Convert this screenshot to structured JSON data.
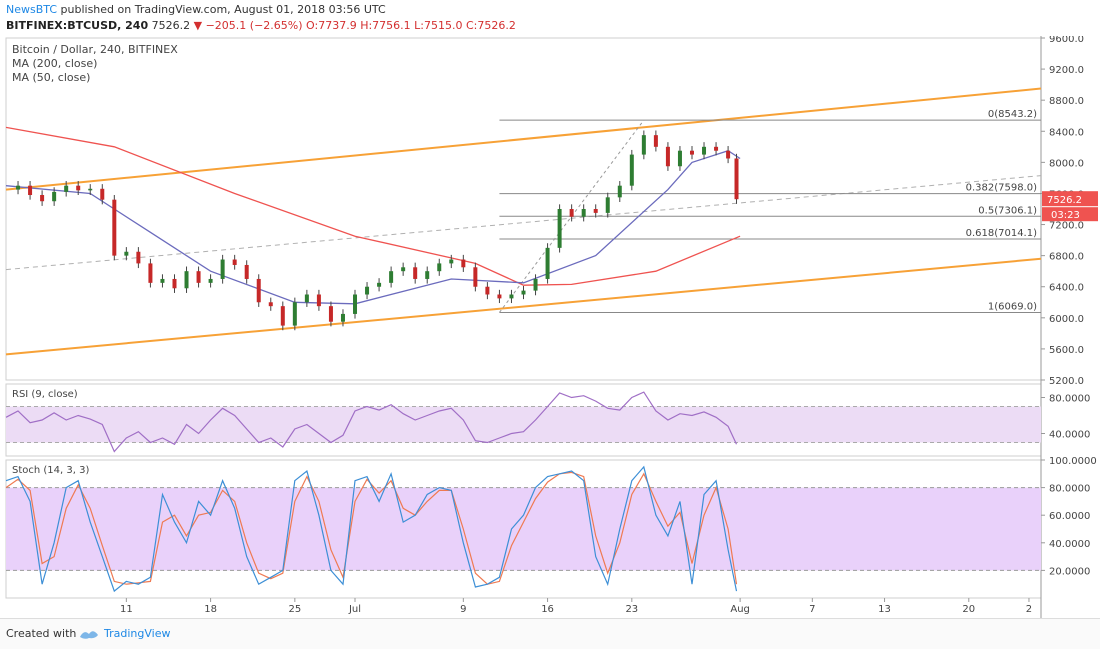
{
  "header": {
    "publisher": "NewsBTC",
    "published_text": "published on TradingView.com, August 01, 2018 03:56 UTC",
    "symbol": "BITFINEX:BTCUSD, 240",
    "last": "7526.2",
    "change": "−205.1 (−2.65%)",
    "ohlc": "O:7737.9 H:7756.1 L:7515.0 C:7526.2"
  },
  "footer": {
    "created_with": "Created with",
    "brand": "TradingView"
  },
  "colors": {
    "bull": "#26a69a",
    "bear": "#ef5350",
    "candle_body_up": "#2e7d32",
    "candle_body_down": "#c62828",
    "channel": "#f7a136",
    "ma200": "#ef5350",
    "ma50": "#6b6bbd",
    "rsi_line": "#a06fc6",
    "rsi_band": "#ecdcf5",
    "stoch_k": "#3d8fd6",
    "stoch_d": "#ef7a52",
    "stoch_band": "#e9d1fa",
    "fib": "#888888",
    "price_tag": "#ef5350"
  },
  "chart_data": [
    {
      "type": "candlestick",
      "title": "Bitcoin / Dollar, 240, BITFINEX",
      "indicators": [
        "MA (200, close)",
        "MA (50, close)"
      ],
      "ylim": [
        5200,
        9600
      ],
      "y_ticks": [
        "9600.0",
        "9200.0",
        "8800.0",
        "8400.0",
        "8000.0",
        "7600.0",
        "7200.0",
        "6800.0",
        "6400.0",
        "6000.0",
        "5600.0",
        "5200.0"
      ],
      "x_ticks": [
        "11",
        "18",
        "25",
        "Jul",
        "9",
        "16",
        "23",
        "Aug",
        "7",
        "13",
        "20",
        "2"
      ],
      "x_tick_days": [
        11,
        18,
        25,
        30,
        39,
        46,
        53,
        62,
        68,
        74,
        81,
        86
      ],
      "x_range_days": [
        1,
        87
      ],
      "last_day": 61.7,
      "close_series": [
        [
          1,
          7650
        ],
        [
          2,
          7700
        ],
        [
          3,
          7580
        ],
        [
          4,
          7500
        ],
        [
          5,
          7620
        ],
        [
          6,
          7700
        ],
        [
          7,
          7640
        ],
        [
          8,
          7660
        ],
        [
          9,
          7520
        ],
        [
          10,
          6800
        ],
        [
          11,
          6850
        ],
        [
          12,
          6700
        ],
        [
          13,
          6450
        ],
        [
          14,
          6500
        ],
        [
          15,
          6380
        ],
        [
          16,
          6600
        ],
        [
          17,
          6450
        ],
        [
          18,
          6500
        ],
        [
          19,
          6750
        ],
        [
          20,
          6680
        ],
        [
          21,
          6500
        ],
        [
          22,
          6200
        ],
        [
          23,
          6150
        ],
        [
          24,
          5900
        ],
        [
          25,
          6200
        ],
        [
          26,
          6300
        ],
        [
          27,
          6150
        ],
        [
          28,
          5950
        ],
        [
          29,
          6050
        ],
        [
          30,
          6300
        ],
        [
          31,
          6400
        ],
        [
          32,
          6450
        ],
        [
          33,
          6600
        ],
        [
          34,
          6650
        ],
        [
          35,
          6500
        ],
        [
          36,
          6600
        ],
        [
          37,
          6700
        ],
        [
          38,
          6750
        ],
        [
          39,
          6650
        ],
        [
          40,
          6400
        ],
        [
          41,
          6300
        ],
        [
          42,
          6250
        ],
        [
          43,
          6300
        ],
        [
          44,
          6350
        ],
        [
          45,
          6500
        ],
        [
          46,
          6900
        ],
        [
          47,
          7400
        ],
        [
          48,
          7300
        ],
        [
          49,
          7400
        ],
        [
          50,
          7350
        ],
        [
          51,
          7550
        ],
        [
          52,
          7700
        ],
        [
          53,
          8100
        ],
        [
          54,
          8350
        ],
        [
          55,
          8200
        ],
        [
          56,
          7950
        ],
        [
          57,
          8150
        ],
        [
          58,
          8100
        ],
        [
          59,
          8200
        ],
        [
          60,
          8150
        ],
        [
          61,
          8050
        ],
        [
          61.7,
          7526
        ]
      ],
      "ohlc_last": {
        "open": 7737.9,
        "high": 7756.1,
        "low": 7515.0,
        "close": 7526.2
      },
      "ma200": [
        [
          1,
          8450
        ],
        [
          10,
          8200
        ],
        [
          20,
          7600
        ],
        [
          30,
          7050
        ],
        [
          40,
          6700
        ],
        [
          44,
          6420
        ],
        [
          48,
          6430
        ],
        [
          55,
          6600
        ],
        [
          62,
          7050
        ]
      ],
      "ma50": [
        [
          1,
          7700
        ],
        [
          8,
          7600
        ],
        [
          13,
          7100
        ],
        [
          18,
          6600
        ],
        [
          25,
          6200
        ],
        [
          30,
          6180
        ],
        [
          38,
          6500
        ],
        [
          44,
          6450
        ],
        [
          50,
          6800
        ],
        [
          56,
          7650
        ],
        [
          58,
          8000
        ],
        [
          61,
          8150
        ],
        [
          62,
          8050
        ]
      ],
      "trendlines": [
        {
          "name": "upper channel",
          "points": [
            [
              1,
              7650
            ],
            [
              87,
              8950
            ]
          ]
        },
        {
          "name": "lower channel",
          "points": [
            [
              1,
              5530
            ],
            [
              87,
              6760
            ]
          ]
        },
        {
          "name": "midline",
          "points": [
            [
              1,
              6620
            ],
            [
              87,
              7830
            ]
          ]
        }
      ],
      "fibonacci": [
        {
          "label": "0(8543.2)",
          "value": 8543.2
        },
        {
          "label": "0.382(7598.0)",
          "value": 7598.0
        },
        {
          "label": "0.5(7306.1)",
          "value": 7306.1
        },
        {
          "label": "0.618(7014.1)",
          "value": 7014.1
        },
        {
          "label": "1(6069.0)",
          "value": 6069.0
        }
      ],
      "fib_x_range": [
        42,
        87
      ],
      "price_tag": "7526.2",
      "time_tag": "03:23"
    },
    {
      "type": "line",
      "title": "RSI (9, close)",
      "ylim": [
        15,
        95
      ],
      "y_ticks": [
        "80.0000",
        "40.0000"
      ],
      "band": [
        30,
        70
      ],
      "values": [
        [
          1,
          58
        ],
        [
          2,
          65
        ],
        [
          3,
          52
        ],
        [
          4,
          55
        ],
        [
          5,
          63
        ],
        [
          6,
          55
        ],
        [
          7,
          60
        ],
        [
          8,
          56
        ],
        [
          9,
          50
        ],
        [
          10,
          20
        ],
        [
          11,
          35
        ],
        [
          12,
          42
        ],
        [
          13,
          30
        ],
        [
          14,
          35
        ],
        [
          15,
          28
        ],
        [
          16,
          50
        ],
        [
          17,
          40
        ],
        [
          18,
          55
        ],
        [
          19,
          68
        ],
        [
          20,
          60
        ],
        [
          21,
          45
        ],
        [
          22,
          30
        ],
        [
          23,
          35
        ],
        [
          24,
          25
        ],
        [
          25,
          45
        ],
        [
          26,
          50
        ],
        [
          27,
          40
        ],
        [
          28,
          30
        ],
        [
          29,
          38
        ],
        [
          30,
          65
        ],
        [
          31,
          70
        ],
        [
          32,
          66
        ],
        [
          33,
          72
        ],
        [
          34,
          62
        ],
        [
          35,
          55
        ],
        [
          36,
          60
        ],
        [
          37,
          65
        ],
        [
          38,
          68
        ],
        [
          39,
          55
        ],
        [
          40,
          32
        ],
        [
          41,
          30
        ],
        [
          42,
          35
        ],
        [
          43,
          40
        ],
        [
          44,
          42
        ],
        [
          45,
          55
        ],
        [
          46,
          70
        ],
        [
          47,
          85
        ],
        [
          48,
          80
        ],
        [
          49,
          82
        ],
        [
          50,
          76
        ],
        [
          51,
          68
        ],
        [
          52,
          66
        ],
        [
          53,
          80
        ],
        [
          54,
          86
        ],
        [
          55,
          65
        ],
        [
          56,
          55
        ],
        [
          57,
          62
        ],
        [
          58,
          60
        ],
        [
          59,
          64
        ],
        [
          60,
          58
        ],
        [
          61,
          48
        ],
        [
          61.7,
          28
        ]
      ]
    },
    {
      "type": "line",
      "title": "Stoch (14, 3, 3)",
      "ylim": [
        0,
        100
      ],
      "y_ticks": [
        "100.0000",
        "80.0000",
        "60.0000",
        "40.0000",
        "20.0000"
      ],
      "band": [
        20,
        80
      ],
      "series": [
        {
          "name": "%K",
          "values": [
            [
              1,
              85
            ],
            [
              2,
              88
            ],
            [
              3,
              70
            ],
            [
              4,
              10
            ],
            [
              5,
              40
            ],
            [
              6,
              80
            ],
            [
              7,
              85
            ],
            [
              8,
              55
            ],
            [
              9,
              30
            ],
            [
              10,
              5
            ],
            [
              11,
              12
            ],
            [
              12,
              10
            ],
            [
              13,
              15
            ],
            [
              14,
              75
            ],
            [
              15,
              55
            ],
            [
              16,
              40
            ],
            [
              17,
              70
            ],
            [
              18,
              60
            ],
            [
              19,
              85
            ],
            [
              20,
              65
            ],
            [
              21,
              30
            ],
            [
              22,
              10
            ],
            [
              23,
              15
            ],
            [
              24,
              20
            ],
            [
              25,
              85
            ],
            [
              26,
              92
            ],
            [
              27,
              60
            ],
            [
              28,
              20
            ],
            [
              29,
              10
            ],
            [
              30,
              85
            ],
            [
              31,
              88
            ],
            [
              32,
              70
            ],
            [
              33,
              90
            ],
            [
              34,
              55
            ],
            [
              35,
              60
            ],
            [
              36,
              75
            ],
            [
              37,
              80
            ],
            [
              38,
              78
            ],
            [
              39,
              40
            ],
            [
              40,
              8
            ],
            [
              41,
              10
            ],
            [
              42,
              15
            ],
            [
              43,
              50
            ],
            [
              44,
              60
            ],
            [
              45,
              80
            ],
            [
              46,
              88
            ],
            [
              47,
              90
            ],
            [
              48,
              92
            ],
            [
              49,
              85
            ],
            [
              50,
              30
            ],
            [
              51,
              10
            ],
            [
              52,
              50
            ],
            [
              53,
              85
            ],
            [
              54,
              95
            ],
            [
              55,
              60
            ],
            [
              56,
              45
            ],
            [
              57,
              70
            ],
            [
              58,
              10
            ],
            [
              59,
              75
            ],
            [
              60,
              85
            ],
            [
              61,
              35
            ],
            [
              61.7,
              5
            ]
          ]
        },
        {
          "name": "%D",
          "values": [
            [
              1,
              80
            ],
            [
              2,
              86
            ],
            [
              3,
              78
            ],
            [
              4,
              25
            ],
            [
              5,
              30
            ],
            [
              6,
              65
            ],
            [
              7,
              82
            ],
            [
              8,
              65
            ],
            [
              9,
              38
            ],
            [
              10,
              12
            ],
            [
              11,
              10
            ],
            [
              12,
              11
            ],
            [
              13,
              12
            ],
            [
              14,
              55
            ],
            [
              15,
              60
            ],
            [
              16,
              45
            ],
            [
              17,
              60
            ],
            [
              18,
              62
            ],
            [
              19,
              78
            ],
            [
              20,
              70
            ],
            [
              21,
              40
            ],
            [
              22,
              18
            ],
            [
              23,
              14
            ],
            [
              24,
              18
            ],
            [
              25,
              70
            ],
            [
              26,
              88
            ],
            [
              27,
              70
            ],
            [
              28,
              35
            ],
            [
              29,
              15
            ],
            [
              30,
              70
            ],
            [
              31,
              86
            ],
            [
              32,
              76
            ],
            [
              33,
              85
            ],
            [
              34,
              65
            ],
            [
              35,
              60
            ],
            [
              36,
              70
            ],
            [
              37,
              78
            ],
            [
              38,
              78
            ],
            [
              39,
              50
            ],
            [
              40,
              18
            ],
            [
              41,
              10
            ],
            [
              42,
              12
            ],
            [
              43,
              38
            ],
            [
              44,
              55
            ],
            [
              45,
              72
            ],
            [
              46,
              84
            ],
            [
              47,
              90
            ],
            [
              48,
              91
            ],
            [
              49,
              88
            ],
            [
              50,
              45
            ],
            [
              51,
              18
            ],
            [
              52,
              40
            ],
            [
              53,
              75
            ],
            [
              54,
              90
            ],
            [
              55,
              70
            ],
            [
              56,
              52
            ],
            [
              57,
              62
            ],
            [
              58,
              25
            ],
            [
              59,
              60
            ],
            [
              60,
              80
            ],
            [
              61,
              50
            ],
            [
              61.7,
              10
            ]
          ]
        }
      ]
    }
  ]
}
